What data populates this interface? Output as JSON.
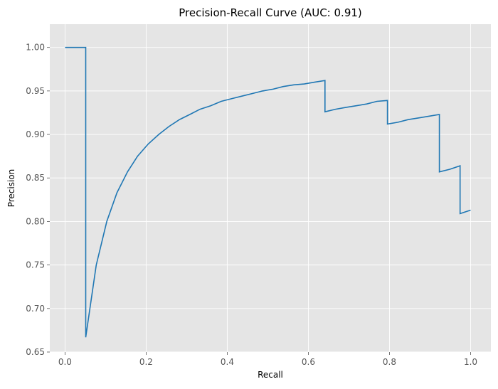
{
  "chart_data": {
    "type": "line",
    "title": "Precision-Recall Curve (AUC: 0.91)",
    "xlabel": "Recall",
    "ylabel": "Precision",
    "xlim": [
      -0.0375,
      1.05
    ],
    "ylim": [
      0.65,
      1.0267
    ],
    "x_ticks": [
      "0.0",
      "0.2",
      "0.4",
      "0.6",
      "0.8",
      "1.0"
    ],
    "y_ticks": [
      "0.65",
      "0.70",
      "0.75",
      "0.80",
      "0.85",
      "0.90",
      "0.95",
      "1.00"
    ],
    "grid": true,
    "line_color": "#1f77b4",
    "plot_background": "#e5e5e5",
    "series": [
      {
        "x": [
          0.0,
          0.051,
          0.051,
          0.077,
          0.103,
          0.128,
          0.154,
          0.179,
          0.205,
          0.231,
          0.256,
          0.282,
          0.308,
          0.333,
          0.359,
          0.385,
          0.41,
          0.436,
          0.462,
          0.487,
          0.513,
          0.538,
          0.564,
          0.59,
          0.615,
          0.641,
          0.641,
          0.667,
          0.692,
          0.718,
          0.744,
          0.769,
          0.795,
          0.795,
          0.821,
          0.846,
          0.872,
          0.897,
          0.923,
          0.923,
          0.949,
          0.974,
          0.974,
          1.0
        ],
        "y": [
          1.0,
          1.0,
          0.667,
          0.75,
          0.8,
          0.833,
          0.857,
          0.875,
          0.889,
          0.9,
          0.909,
          0.917,
          0.923,
          0.929,
          0.933,
          0.938,
          0.941,
          0.944,
          0.947,
          0.95,
          0.952,
          0.955,
          0.957,
          0.958,
          0.96,
          0.962,
          0.926,
          0.929,
          0.931,
          0.933,
          0.935,
          0.938,
          0.939,
          0.912,
          0.914,
          0.917,
          0.919,
          0.921,
          0.923,
          0.857,
          0.86,
          0.864,
          0.809,
          0.813
        ]
      }
    ]
  }
}
